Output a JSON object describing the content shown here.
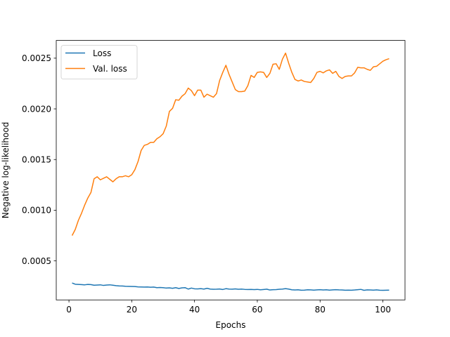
{
  "chart_data": {
    "type": "line",
    "title": "",
    "xlabel": "Epochs",
    "ylabel": "Negative log-likelihood",
    "xlim": [
      -4.05,
      107.05
    ],
    "ylim": [
      0.000115,
      0.002675
    ],
    "xticks": [
      0,
      20,
      40,
      60,
      80,
      100
    ],
    "xtick_labels": [
      "0",
      "20",
      "40",
      "60",
      "80",
      "100"
    ],
    "yticks": [
      0.0005,
      0.001,
      0.0015,
      0.002,
      0.0025
    ],
    "ytick_labels": [
      "0.0005",
      "0.0010",
      "0.0015",
      "0.0020",
      "0.0025"
    ],
    "grid": false,
    "legend_position": "upper-left",
    "series": [
      {
        "name": "Loss",
        "color": "#1f77b4",
        "x": [
          1,
          2,
          3,
          4,
          5,
          6,
          7,
          8,
          9,
          10,
          11,
          12,
          13,
          14,
          15,
          16,
          17,
          18,
          19,
          20,
          21,
          22,
          23,
          24,
          25,
          26,
          27,
          28,
          29,
          30,
          31,
          32,
          33,
          34,
          35,
          36,
          37,
          38,
          39,
          40,
          41,
          42,
          43,
          44,
          45,
          46,
          47,
          48,
          49,
          50,
          51,
          52,
          53,
          54,
          55,
          56,
          57,
          58,
          59,
          60,
          61,
          62,
          63,
          64,
          65,
          66,
          67,
          68,
          69,
          70,
          71,
          72,
          73,
          74,
          75,
          76,
          77,
          78,
          79,
          80,
          81,
          82,
          83,
          84,
          85,
          86,
          87,
          88,
          89,
          90,
          91,
          92,
          93,
          94,
          95,
          96,
          97,
          98,
          99,
          100,
          101,
          102
        ],
        "y": [
          0.000282,
          0.00027,
          0.000268,
          0.000266,
          0.000264,
          0.000268,
          0.000266,
          0.00026,
          0.000262,
          0.000264,
          0.000258,
          0.000262,
          0.000264,
          0.00026,
          0.000256,
          0.000253,
          0.000252,
          0.00025,
          0.000249,
          0.000248,
          0.000247,
          0.000244,
          0.000243,
          0.000242,
          0.000243,
          0.00024,
          0.000242,
          0.000236,
          0.000238,
          0.000236,
          0.000232,
          0.000234,
          0.00023,
          0.000236,
          0.000228,
          0.000234,
          0.000236,
          0.000222,
          0.000232,
          0.000225,
          0.000224,
          0.000226,
          0.000222,
          0.00023,
          0.000222,
          0.00022,
          0.000221,
          0.000223,
          0.000218,
          0.000226,
          0.000222,
          0.000221,
          0.000224,
          0.00022,
          0.000222,
          0.000219,
          0.000218,
          0.000219,
          0.000217,
          0.000219,
          0.000215,
          0.000218,
          0.000221,
          0.000213,
          0.000216,
          0.000217,
          0.00022,
          0.000222,
          0.000226,
          0.000222,
          0.000215,
          0.000213,
          0.000215,
          0.000211,
          0.000212,
          0.000215,
          0.000214,
          0.000212,
          0.000214,
          0.000216,
          0.000213,
          0.000215,
          0.000212,
          0.000214,
          0.000216,
          0.000214,
          0.000213,
          0.000211,
          0.000212,
          0.000211,
          0.000213,
          0.000216,
          0.000219,
          0.00021,
          0.000214,
          0.000213,
          0.000212,
          0.000214,
          0.000211,
          0.00021,
          0.000211,
          0.000212
        ]
      },
      {
        "name": "Val. loss",
        "color": "#ff7f0e",
        "x": [
          1,
          2,
          3,
          4,
          5,
          6,
          7,
          8,
          9,
          10,
          11,
          12,
          13,
          14,
          15,
          16,
          17,
          18,
          19,
          20,
          21,
          22,
          23,
          24,
          25,
          26,
          27,
          28,
          29,
          30,
          31,
          32,
          33,
          34,
          35,
          36,
          37,
          38,
          39,
          40,
          41,
          42,
          43,
          44,
          45,
          46,
          47,
          48,
          49,
          50,
          51,
          52,
          53,
          54,
          55,
          56,
          57,
          58,
          59,
          60,
          61,
          62,
          63,
          64,
          65,
          66,
          67,
          68,
          69,
          70,
          71,
          72,
          73,
          74,
          75,
          76,
          77,
          78,
          79,
          80,
          81,
          82,
          83,
          84,
          85,
          86,
          87,
          88,
          89,
          90,
          91,
          92,
          93,
          94,
          95,
          96,
          97,
          98,
          99,
          100,
          101,
          102
        ],
        "y": [
          0.00075,
          0.00081,
          0.0009,
          0.00097,
          0.00105,
          0.00112,
          0.001175,
          0.00131,
          0.00133,
          0.0013,
          0.001315,
          0.00133,
          0.001305,
          0.00128,
          0.00131,
          0.00133,
          0.00133,
          0.00134,
          0.00133,
          0.00135,
          0.0014,
          0.00148,
          0.00159,
          0.00164,
          0.00165,
          0.00167,
          0.00167,
          0.001705,
          0.001725,
          0.001755,
          0.00183,
          0.001975,
          0.002005,
          0.00209,
          0.002085,
          0.002125,
          0.00215,
          0.002205,
          0.00218,
          0.00213,
          0.002185,
          0.002185,
          0.002115,
          0.002145,
          0.00213,
          0.002115,
          0.00215,
          0.00228,
          0.00236,
          0.00243,
          0.00234,
          0.002265,
          0.00219,
          0.00217,
          0.00217,
          0.002175,
          0.00223,
          0.00233,
          0.00231,
          0.00236,
          0.002365,
          0.00236,
          0.00231,
          0.00235,
          0.00244,
          0.002445,
          0.00239,
          0.00249,
          0.00255,
          0.00245,
          0.00236,
          0.00229,
          0.002275,
          0.002285,
          0.00227,
          0.002265,
          0.00226,
          0.0023,
          0.00236,
          0.00237,
          0.002355,
          0.002375,
          0.002385,
          0.00235,
          0.00237,
          0.00232,
          0.0023,
          0.00232,
          0.002325,
          0.002325,
          0.002355,
          0.00241,
          0.002405,
          0.002405,
          0.00239,
          0.00238,
          0.002415,
          0.00242,
          0.002445,
          0.00247,
          0.002485,
          0.002495
        ]
      }
    ]
  }
}
